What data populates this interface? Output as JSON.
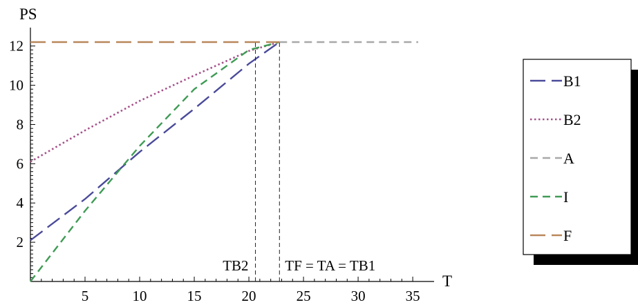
{
  "chart_data": {
    "type": "line",
    "title": "",
    "xlabel": "T",
    "ylabel": "PS",
    "xlim": [
      0,
      36
    ],
    "ylim": [
      0,
      12.2
    ],
    "xticks": [
      5,
      10,
      15,
      20,
      25,
      30,
      35
    ],
    "yticks": [
      2,
      4,
      6,
      8,
      10,
      12
    ],
    "grid": false,
    "legend_position": "right",
    "series": [
      {
        "name": "B1",
        "color": "#4a4a9a",
        "dash": "long-dash",
        "x": [
          0,
          5,
          10,
          15,
          20,
          22.8
        ],
        "y": [
          2.1,
          4.2,
          6.6,
          8.8,
          11.1,
          12.2
        ]
      },
      {
        "name": "B2",
        "color": "#a5508a",
        "dash": "dotted",
        "x": [
          0,
          5,
          10,
          15,
          20,
          22.8
        ],
        "y": [
          6.1,
          7.7,
          9.2,
          10.5,
          11.75,
          12.2
        ]
      },
      {
        "name": "A",
        "color": "#a8a8a8",
        "dash": "dashed",
        "x": [
          22.8,
          35.5
        ],
        "y": [
          12.2,
          12.2
        ]
      },
      {
        "name": "I",
        "color": "#3f9b55",
        "dash": "dashed",
        "x": [
          0,
          5,
          10,
          15,
          20,
          22.8
        ],
        "y": [
          0,
          3.6,
          6.9,
          9.8,
          11.8,
          12.2
        ]
      },
      {
        "name": "F",
        "color": "#b8875a",
        "dash": "long-dash",
        "x": [
          0,
          22.8
        ],
        "y": [
          12.2,
          12.2
        ]
      }
    ],
    "annotations": [
      {
        "text": "TB2",
        "x": 20.6
      },
      {
        "text": "TF = TA = TB1",
        "x": 22.8
      }
    ]
  }
}
